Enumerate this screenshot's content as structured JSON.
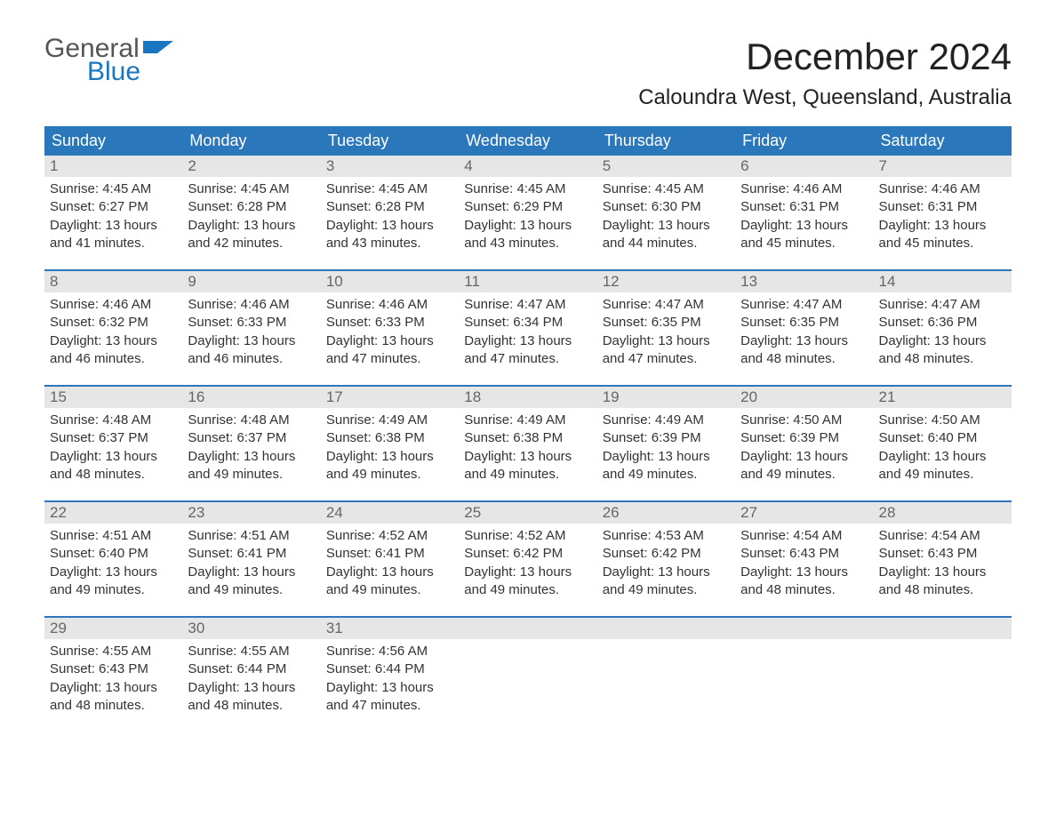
{
  "logo": {
    "top": "General",
    "bottom": "Blue",
    "flag_color": "#1976c1"
  },
  "title": "December 2024",
  "location": "Caloundra West, Queensland, Australia",
  "colors": {
    "header_bg": "#2a77bb",
    "header_text": "#ffffff",
    "daynum_bg": "#e6e6e6",
    "daynum_text": "#666666",
    "body_text": "#333333",
    "week_divider": "#2a77bb",
    "page_bg": "#ffffff"
  },
  "day_labels": [
    "Sunday",
    "Monday",
    "Tuesday",
    "Wednesday",
    "Thursday",
    "Friday",
    "Saturday"
  ],
  "weeks": [
    [
      {
        "n": "1",
        "sunrise": "Sunrise: 4:45 AM",
        "sunset": "Sunset: 6:27 PM",
        "d1": "Daylight: 13 hours",
        "d2": "and 41 minutes."
      },
      {
        "n": "2",
        "sunrise": "Sunrise: 4:45 AM",
        "sunset": "Sunset: 6:28 PM",
        "d1": "Daylight: 13 hours",
        "d2": "and 42 minutes."
      },
      {
        "n": "3",
        "sunrise": "Sunrise: 4:45 AM",
        "sunset": "Sunset: 6:28 PM",
        "d1": "Daylight: 13 hours",
        "d2": "and 43 minutes."
      },
      {
        "n": "4",
        "sunrise": "Sunrise: 4:45 AM",
        "sunset": "Sunset: 6:29 PM",
        "d1": "Daylight: 13 hours",
        "d2": "and 43 minutes."
      },
      {
        "n": "5",
        "sunrise": "Sunrise: 4:45 AM",
        "sunset": "Sunset: 6:30 PM",
        "d1": "Daylight: 13 hours",
        "d2": "and 44 minutes."
      },
      {
        "n": "6",
        "sunrise": "Sunrise: 4:46 AM",
        "sunset": "Sunset: 6:31 PM",
        "d1": "Daylight: 13 hours",
        "d2": "and 45 minutes."
      },
      {
        "n": "7",
        "sunrise": "Sunrise: 4:46 AM",
        "sunset": "Sunset: 6:31 PM",
        "d1": "Daylight: 13 hours",
        "d2": "and 45 minutes."
      }
    ],
    [
      {
        "n": "8",
        "sunrise": "Sunrise: 4:46 AM",
        "sunset": "Sunset: 6:32 PM",
        "d1": "Daylight: 13 hours",
        "d2": "and 46 minutes."
      },
      {
        "n": "9",
        "sunrise": "Sunrise: 4:46 AM",
        "sunset": "Sunset: 6:33 PM",
        "d1": "Daylight: 13 hours",
        "d2": "and 46 minutes."
      },
      {
        "n": "10",
        "sunrise": "Sunrise: 4:46 AM",
        "sunset": "Sunset: 6:33 PM",
        "d1": "Daylight: 13 hours",
        "d2": "and 47 minutes."
      },
      {
        "n": "11",
        "sunrise": "Sunrise: 4:47 AM",
        "sunset": "Sunset: 6:34 PM",
        "d1": "Daylight: 13 hours",
        "d2": "and 47 minutes."
      },
      {
        "n": "12",
        "sunrise": "Sunrise: 4:47 AM",
        "sunset": "Sunset: 6:35 PM",
        "d1": "Daylight: 13 hours",
        "d2": "and 47 minutes."
      },
      {
        "n": "13",
        "sunrise": "Sunrise: 4:47 AM",
        "sunset": "Sunset: 6:35 PM",
        "d1": "Daylight: 13 hours",
        "d2": "and 48 minutes."
      },
      {
        "n": "14",
        "sunrise": "Sunrise: 4:47 AM",
        "sunset": "Sunset: 6:36 PM",
        "d1": "Daylight: 13 hours",
        "d2": "and 48 minutes."
      }
    ],
    [
      {
        "n": "15",
        "sunrise": "Sunrise: 4:48 AM",
        "sunset": "Sunset: 6:37 PM",
        "d1": "Daylight: 13 hours",
        "d2": "and 48 minutes."
      },
      {
        "n": "16",
        "sunrise": "Sunrise: 4:48 AM",
        "sunset": "Sunset: 6:37 PM",
        "d1": "Daylight: 13 hours",
        "d2": "and 49 minutes."
      },
      {
        "n": "17",
        "sunrise": "Sunrise: 4:49 AM",
        "sunset": "Sunset: 6:38 PM",
        "d1": "Daylight: 13 hours",
        "d2": "and 49 minutes."
      },
      {
        "n": "18",
        "sunrise": "Sunrise: 4:49 AM",
        "sunset": "Sunset: 6:38 PM",
        "d1": "Daylight: 13 hours",
        "d2": "and 49 minutes."
      },
      {
        "n": "19",
        "sunrise": "Sunrise: 4:49 AM",
        "sunset": "Sunset: 6:39 PM",
        "d1": "Daylight: 13 hours",
        "d2": "and 49 minutes."
      },
      {
        "n": "20",
        "sunrise": "Sunrise: 4:50 AM",
        "sunset": "Sunset: 6:39 PM",
        "d1": "Daylight: 13 hours",
        "d2": "and 49 minutes."
      },
      {
        "n": "21",
        "sunrise": "Sunrise: 4:50 AM",
        "sunset": "Sunset: 6:40 PM",
        "d1": "Daylight: 13 hours",
        "d2": "and 49 minutes."
      }
    ],
    [
      {
        "n": "22",
        "sunrise": "Sunrise: 4:51 AM",
        "sunset": "Sunset: 6:40 PM",
        "d1": "Daylight: 13 hours",
        "d2": "and 49 minutes."
      },
      {
        "n": "23",
        "sunrise": "Sunrise: 4:51 AM",
        "sunset": "Sunset: 6:41 PM",
        "d1": "Daylight: 13 hours",
        "d2": "and 49 minutes."
      },
      {
        "n": "24",
        "sunrise": "Sunrise: 4:52 AM",
        "sunset": "Sunset: 6:41 PM",
        "d1": "Daylight: 13 hours",
        "d2": "and 49 minutes."
      },
      {
        "n": "25",
        "sunrise": "Sunrise: 4:52 AM",
        "sunset": "Sunset: 6:42 PM",
        "d1": "Daylight: 13 hours",
        "d2": "and 49 minutes."
      },
      {
        "n": "26",
        "sunrise": "Sunrise: 4:53 AM",
        "sunset": "Sunset: 6:42 PM",
        "d1": "Daylight: 13 hours",
        "d2": "and 49 minutes."
      },
      {
        "n": "27",
        "sunrise": "Sunrise: 4:54 AM",
        "sunset": "Sunset: 6:43 PM",
        "d1": "Daylight: 13 hours",
        "d2": "and 48 minutes."
      },
      {
        "n": "28",
        "sunrise": "Sunrise: 4:54 AM",
        "sunset": "Sunset: 6:43 PM",
        "d1": "Daylight: 13 hours",
        "d2": "and 48 minutes."
      }
    ],
    [
      {
        "n": "29",
        "sunrise": "Sunrise: 4:55 AM",
        "sunset": "Sunset: 6:43 PM",
        "d1": "Daylight: 13 hours",
        "d2": "and 48 minutes."
      },
      {
        "n": "30",
        "sunrise": "Sunrise: 4:55 AM",
        "sunset": "Sunset: 6:44 PM",
        "d1": "Daylight: 13 hours",
        "d2": "and 48 minutes."
      },
      {
        "n": "31",
        "sunrise": "Sunrise: 4:56 AM",
        "sunset": "Sunset: 6:44 PM",
        "d1": "Daylight: 13 hours",
        "d2": "and 47 minutes."
      },
      {
        "n": "",
        "sunrise": "",
        "sunset": "",
        "d1": "",
        "d2": "",
        "empty": true
      },
      {
        "n": "",
        "sunrise": "",
        "sunset": "",
        "d1": "",
        "d2": "",
        "empty": true
      },
      {
        "n": "",
        "sunrise": "",
        "sunset": "",
        "d1": "",
        "d2": "",
        "empty": true
      },
      {
        "n": "",
        "sunrise": "",
        "sunset": "",
        "d1": "",
        "d2": "",
        "empty": true
      }
    ]
  ]
}
